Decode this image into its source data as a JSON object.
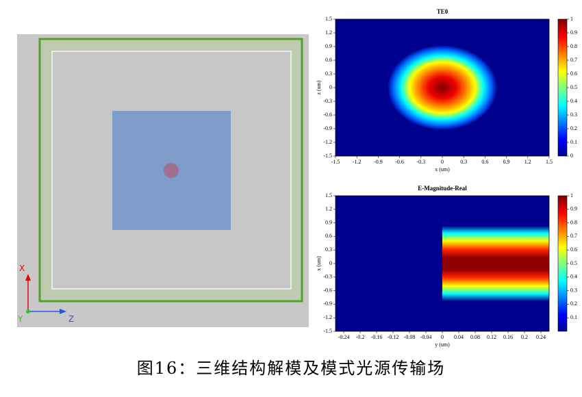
{
  "view3d": {
    "axis_labels": {
      "x": "X",
      "y": "Y",
      "z": "Z"
    }
  },
  "plots": [
    {
      "title": "TE0",
      "xlabel": "x (um)",
      "ylabel": "z (um)",
      "xlim": [
        -1.5,
        1.5
      ],
      "ylim": [
        -1.5,
        1.5
      ],
      "xticks": [
        -1.5,
        -1.2,
        -0.9,
        -0.6,
        -0.3,
        0,
        0.3,
        0.6,
        0.9,
        1.2,
        1.5
      ],
      "yticks": [
        1.5,
        1.2,
        0.9,
        0.6,
        0.3,
        0,
        -0.3,
        -0.6,
        -0.9,
        -1.2,
        -1.5
      ],
      "clim": [
        0,
        1
      ],
      "cticks": [
        1,
        0.9,
        0.8,
        0.7,
        0.6,
        0.5,
        0.4,
        0.3,
        0.2,
        0.1,
        0
      ]
    },
    {
      "title": "E-Magnitude-Real",
      "xlabel": "y (um)",
      "ylabel": "x (um)",
      "xlim": [
        -0.26,
        0.26
      ],
      "ylim": [
        -1.5,
        1.5
      ],
      "xticks": [
        -0.24,
        -0.2,
        -0.16,
        -0.12,
        -0.08,
        -0.04,
        0,
        0.04,
        0.08,
        0.12,
        0.16,
        0.2,
        0.24
      ],
      "yticks": [
        1.5,
        1.2,
        0.9,
        0.6,
        0.3,
        0,
        -0.3,
        -0.6,
        -0.9,
        -1.2,
        -1.5
      ],
      "clim": [
        0,
        1
      ],
      "cticks": [
        1,
        0.9,
        0.8,
        0.7,
        0.6,
        0.5,
        0.4,
        0.3,
        0.2,
        0.1
      ]
    }
  ],
  "caption": "图16：三维结构解模及模式光源传输场"
}
